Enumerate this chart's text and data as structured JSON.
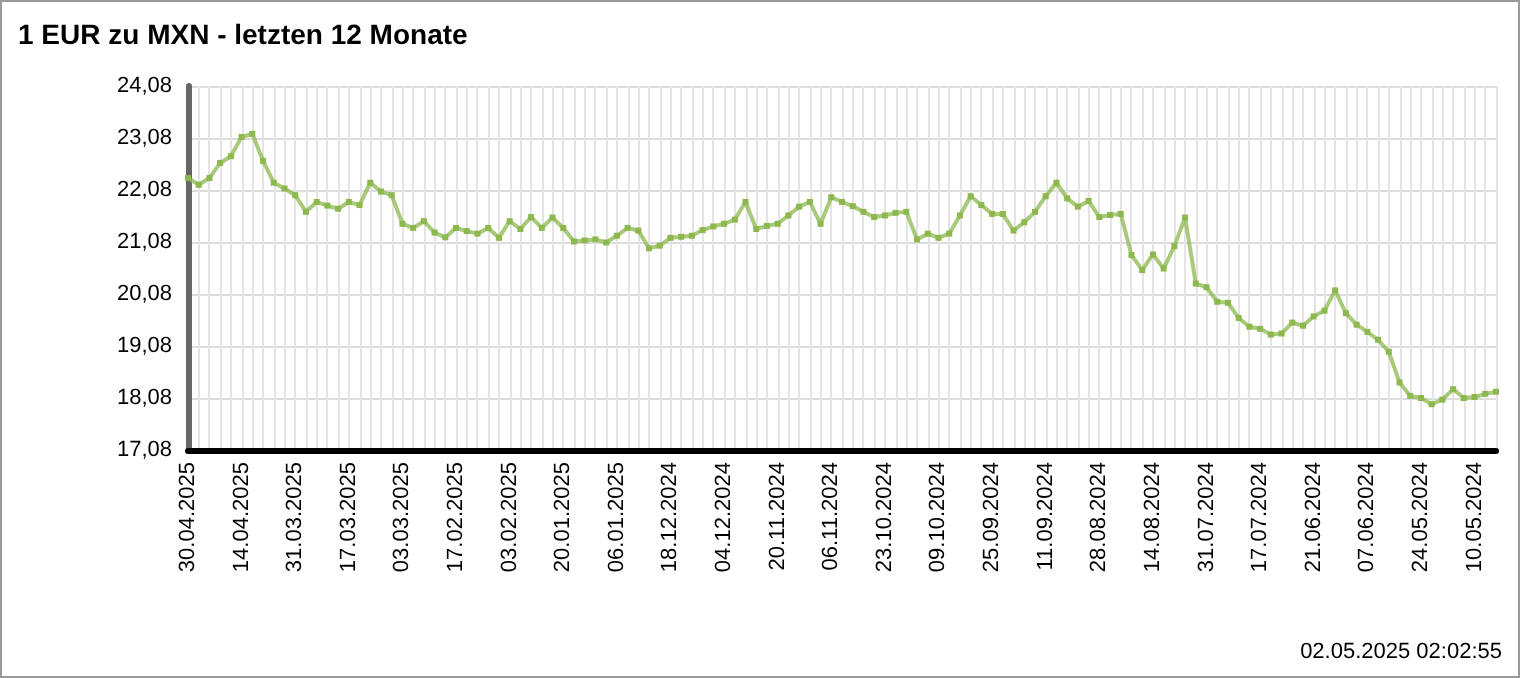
{
  "chart_data": {
    "type": "line",
    "title": "1 EUR zu MXN - letzten 12 Monate",
    "categories": [
      "30.04.2025",
      null,
      null,
      null,
      null,
      "14.04.2025",
      null,
      null,
      null,
      null,
      "31.03.2025",
      null,
      null,
      null,
      null,
      "17.03.2025",
      null,
      null,
      null,
      null,
      "03.03.2025",
      null,
      null,
      null,
      null,
      "17.02.2025",
      null,
      null,
      null,
      null,
      "03.02.2025",
      null,
      null,
      null,
      null,
      "20.01.2025",
      null,
      null,
      null,
      null,
      "06.01.2025",
      null,
      null,
      null,
      null,
      "18.12.2024",
      null,
      null,
      null,
      null,
      "04.12.2024",
      null,
      null,
      null,
      null,
      "20.11.2024",
      null,
      null,
      null,
      null,
      "06.11.2024",
      null,
      null,
      null,
      null,
      "23.10.2024",
      null,
      null,
      null,
      null,
      "09.10.2024",
      null,
      null,
      null,
      null,
      "25.09.2024",
      null,
      null,
      null,
      null,
      "11.09.2024",
      null,
      null,
      null,
      null,
      "28.08.2024",
      null,
      null,
      null,
      null,
      "14.08.2024",
      null,
      null,
      null,
      null,
      "31.07.2024",
      null,
      null,
      null,
      null,
      "17.07.2024",
      null,
      null,
      null,
      null,
      "21.06.2024",
      null,
      null,
      null,
      null,
      "07.06.2024",
      null,
      null,
      null,
      null,
      "24.05.2024",
      null,
      null,
      null,
      null,
      "10.05.2024",
      null,
      null
    ],
    "series": [
      {
        "color": "#8cb84e",
        "values": [
          22.31,
          22.18,
          22.31,
          22.6,
          22.73,
          23.1,
          23.16,
          22.64,
          22.22,
          22.11,
          21.98,
          21.66,
          21.85,
          21.78,
          21.72,
          21.85,
          21.79,
          22.22,
          22.05,
          21.98,
          21.43,
          21.35,
          21.48,
          21.26,
          21.17,
          21.35,
          21.29,
          21.24,
          21.35,
          21.16,
          21.48,
          21.33,
          21.56,
          21.35,
          21.55,
          21.35,
          21.09,
          21.11,
          21.13,
          21.07,
          21.2,
          21.35,
          21.3,
          20.96,
          21.01,
          21.16,
          21.18,
          21.2,
          21.31,
          21.38,
          21.43,
          21.51,
          21.85,
          21.33,
          21.39,
          21.43,
          21.59,
          21.76,
          21.85,
          21.43,
          21.94,
          21.85,
          21.77,
          21.66,
          21.56,
          21.59,
          21.64,
          21.66,
          21.13,
          21.24,
          21.16,
          21.24,
          21.59,
          21.96,
          21.79,
          21.62,
          21.62,
          21.3,
          21.46,
          21.66,
          21.96,
          22.22,
          21.92,
          21.76,
          21.87,
          21.56,
          21.6,
          21.62,
          20.83,
          20.54,
          20.84,
          20.57,
          21.0,
          21.55,
          20.28,
          20.21,
          19.93,
          19.91,
          19.62,
          19.45,
          19.41,
          19.3,
          19.32,
          19.53,
          19.47,
          19.65,
          19.76,
          20.15,
          19.71,
          19.49,
          19.35,
          19.2,
          18.97,
          18.38,
          18.12,
          18.08,
          17.96,
          18.05,
          18.25,
          18.08,
          18.1,
          18.16,
          18.2
        ]
      }
    ],
    "ylim": [
      17.08,
      24.08
    ],
    "yticks": [
      {
        "value": 17.08,
        "label": "17,08"
      },
      {
        "value": 18.08,
        "label": "18,08"
      },
      {
        "value": 19.08,
        "label": "19,08"
      },
      {
        "value": 20.08,
        "label": "20,08"
      },
      {
        "value": 21.08,
        "label": "21,08"
      },
      {
        "value": 22.08,
        "label": "22,08"
      },
      {
        "value": 23.08,
        "label": "23,08"
      },
      {
        "value": 24.08,
        "label": "24,08"
      }
    ],
    "grid": true,
    "marker": "square",
    "line_style": "solid",
    "annotations": [
      "02.05.2025 02:02:55"
    ]
  }
}
